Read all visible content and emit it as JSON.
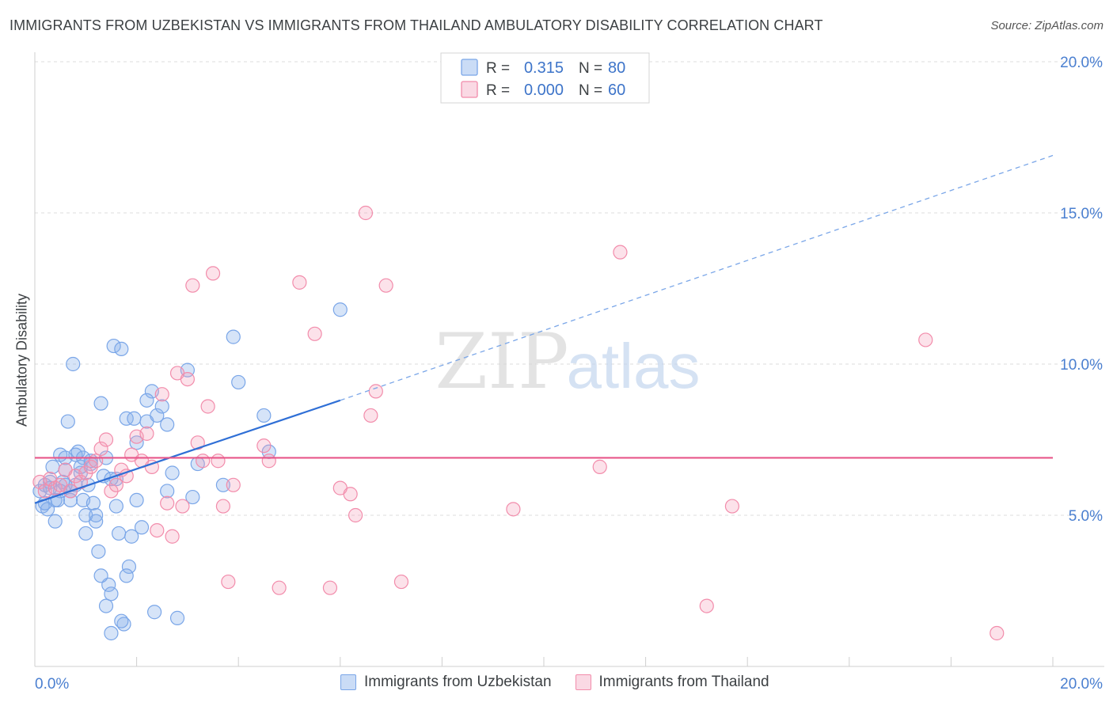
{
  "title": "IMMIGRANTS FROM UZBEKISTAN VS IMMIGRANTS FROM THAILAND AMBULATORY DISABILITY CORRELATION CHART",
  "source": "Source: ZipAtlas.com",
  "watermark": {
    "zip": "ZIP",
    "atlas": "atlas"
  },
  "legend_top": [
    {
      "r_label": "R =",
      "r_value": "0.315",
      "n_label": "N =",
      "n_value": "80",
      "color": "#7aa6e8"
    },
    {
      "r_label": "R =",
      "r_value": "0.000",
      "n_label": "N =",
      "n_value": "60",
      "color": "#f28cab"
    }
  ],
  "chart_data": {
    "type": "scatter",
    "title": "IMMIGRANTS FROM UZBEKISTAN VS IMMIGRANTS FROM THAILAND AMBULATORY DISABILITY CORRELATION CHART",
    "xlabel": "",
    "ylabel": "Ambulatory Disability",
    "xlim": [
      0,
      20
    ],
    "ylim": [
      0,
      20
    ],
    "x_tick_labels": [
      "0.0%",
      "20.0%"
    ],
    "y_ticks": [
      5,
      10,
      15,
      20
    ],
    "y_tick_labels": [
      "5.0%",
      "10.0%",
      "15.0%",
      "20.0%"
    ],
    "grid": true,
    "legend_position": "bottom",
    "series": [
      {
        "name": "Immigrants from Uzbekistan",
        "color": "#7aa6e8",
        "fill": "rgba(138,178,236,0.35)",
        "trend": {
          "x": [
            0,
            6
          ],
          "y": [
            5.4,
            8.8
          ],
          "dashed_to": [
            20,
            16.9
          ]
        },
        "points": [
          [
            0.1,
            5.8
          ],
          [
            0.2,
            6.0
          ],
          [
            0.15,
            5.3
          ],
          [
            0.3,
            5.9
          ],
          [
            0.35,
            6.6
          ],
          [
            0.4,
            4.8
          ],
          [
            0.45,
            5.5
          ],
          [
            0.5,
            7.0
          ],
          [
            0.55,
            6.1
          ],
          [
            0.6,
            6.5
          ],
          [
            0.65,
            8.1
          ],
          [
            0.7,
            5.8
          ],
          [
            0.75,
            10.0
          ],
          [
            0.8,
            6.0
          ],
          [
            0.85,
            7.1
          ],
          [
            0.9,
            6.4
          ],
          [
            0.95,
            5.5
          ],
          [
            1.0,
            4.4
          ],
          [
            1.05,
            6.0
          ],
          [
            1.1,
            6.7
          ],
          [
            1.15,
            5.4
          ],
          [
            1.2,
            4.8
          ],
          [
            1.25,
            3.8
          ],
          [
            1.3,
            8.7
          ],
          [
            1.35,
            6.3
          ],
          [
            1.4,
            6.9
          ],
          [
            1.45,
            2.7
          ],
          [
            1.5,
            2.4
          ],
          [
            1.55,
            10.6
          ],
          [
            1.6,
            6.2
          ],
          [
            1.65,
            4.4
          ],
          [
            1.7,
            10.5
          ],
          [
            1.75,
            1.4
          ],
          [
            1.8,
            8.2
          ],
          [
            1.85,
            3.3
          ],
          [
            1.9,
            4.3
          ],
          [
            1.95,
            8.2
          ],
          [
            2.0,
            5.5
          ],
          [
            2.1,
            4.6
          ],
          [
            2.2,
            8.1
          ],
          [
            2.3,
            9.1
          ],
          [
            2.35,
            1.8
          ],
          [
            2.4,
            8.3
          ],
          [
            2.5,
            8.6
          ],
          [
            2.6,
            8.0
          ],
          [
            2.7,
            6.4
          ],
          [
            2.8,
            1.6
          ],
          [
            3.1,
            5.6
          ],
          [
            3.2,
            6.7
          ],
          [
            3.9,
            10.9
          ],
          [
            4.0,
            9.4
          ],
          [
            4.5,
            8.3
          ],
          [
            4.6,
            7.1
          ],
          [
            6.0,
            11.8
          ],
          [
            1.5,
            1.1
          ],
          [
            1.3,
            3.0
          ],
          [
            1.0,
            5.0
          ],
          [
            0.9,
            6.6
          ],
          [
            0.7,
            5.5
          ],
          [
            0.6,
            6.0
          ],
          [
            0.25,
            5.2
          ],
          [
            3.0,
            9.8
          ],
          [
            2.6,
            5.8
          ],
          [
            1.1,
            6.8
          ],
          [
            0.5,
            5.8
          ],
          [
            1.2,
            5.0
          ],
          [
            0.4,
            5.5
          ],
          [
            1.5,
            6.2
          ],
          [
            2.2,
            8.8
          ],
          [
            1.8,
            3.0
          ],
          [
            0.8,
            7.0
          ],
          [
            0.3,
            6.1
          ],
          [
            2.0,
            7.4
          ],
          [
            1.4,
            2.0
          ],
          [
            3.7,
            6.0
          ],
          [
            1.7,
            1.5
          ],
          [
            0.95,
            6.9
          ],
          [
            1.6,
            5.3
          ],
          [
            0.2,
            5.4
          ],
          [
            0.6,
            6.9
          ]
        ]
      },
      {
        "name": "Immigrants from Thailand",
        "color": "#f28cab",
        "fill": "rgba(245,160,185,0.3)",
        "trend": {
          "x": [
            0,
            20
          ],
          "y": [
            6.9,
            6.9
          ]
        },
        "points": [
          [
            0.1,
            6.1
          ],
          [
            0.2,
            5.8
          ],
          [
            0.3,
            6.2
          ],
          [
            0.4,
            5.9
          ],
          [
            0.5,
            6.0
          ],
          [
            0.6,
            6.5
          ],
          [
            0.7,
            5.8
          ],
          [
            0.8,
            6.3
          ],
          [
            0.9,
            6.1
          ],
          [
            1.0,
            6.4
          ],
          [
            1.1,
            6.6
          ],
          [
            1.2,
            6.8
          ],
          [
            1.3,
            7.2
          ],
          [
            1.4,
            7.5
          ],
          [
            1.5,
            5.8
          ],
          [
            1.6,
            6.0
          ],
          [
            1.7,
            6.5
          ],
          [
            1.8,
            6.3
          ],
          [
            1.9,
            7.0
          ],
          [
            2.0,
            7.6
          ],
          [
            2.1,
            6.8
          ],
          [
            2.2,
            7.7
          ],
          [
            2.3,
            6.6
          ],
          [
            2.4,
            4.5
          ],
          [
            2.5,
            9.0
          ],
          [
            2.6,
            5.4
          ],
          [
            2.7,
            4.3
          ],
          [
            2.8,
            9.7
          ],
          [
            2.9,
            5.3
          ],
          [
            3.0,
            9.5
          ],
          [
            3.1,
            12.6
          ],
          [
            3.2,
            7.4
          ],
          [
            3.3,
            6.8
          ],
          [
            3.4,
            8.6
          ],
          [
            3.5,
            13.0
          ],
          [
            3.6,
            6.8
          ],
          [
            3.7,
            5.3
          ],
          [
            3.8,
            2.8
          ],
          [
            3.9,
            6.0
          ],
          [
            4.5,
            7.3
          ],
          [
            4.6,
            6.8
          ],
          [
            4.8,
            2.6
          ],
          [
            5.2,
            12.7
          ],
          [
            5.5,
            11.0
          ],
          [
            5.8,
            2.6
          ],
          [
            6.0,
            5.9
          ],
          [
            6.2,
            5.7
          ],
          [
            6.3,
            5.0
          ],
          [
            6.5,
            15.0
          ],
          [
            6.6,
            8.3
          ],
          [
            6.7,
            9.1
          ],
          [
            6.9,
            12.6
          ],
          [
            7.2,
            2.8
          ],
          [
            9.4,
            5.2
          ],
          [
            11.1,
            6.6
          ],
          [
            11.5,
            13.7
          ],
          [
            13.2,
            2.0
          ],
          [
            13.7,
            5.3
          ],
          [
            17.5,
            10.8
          ],
          [
            18.9,
            1.1
          ]
        ]
      }
    ]
  }
}
